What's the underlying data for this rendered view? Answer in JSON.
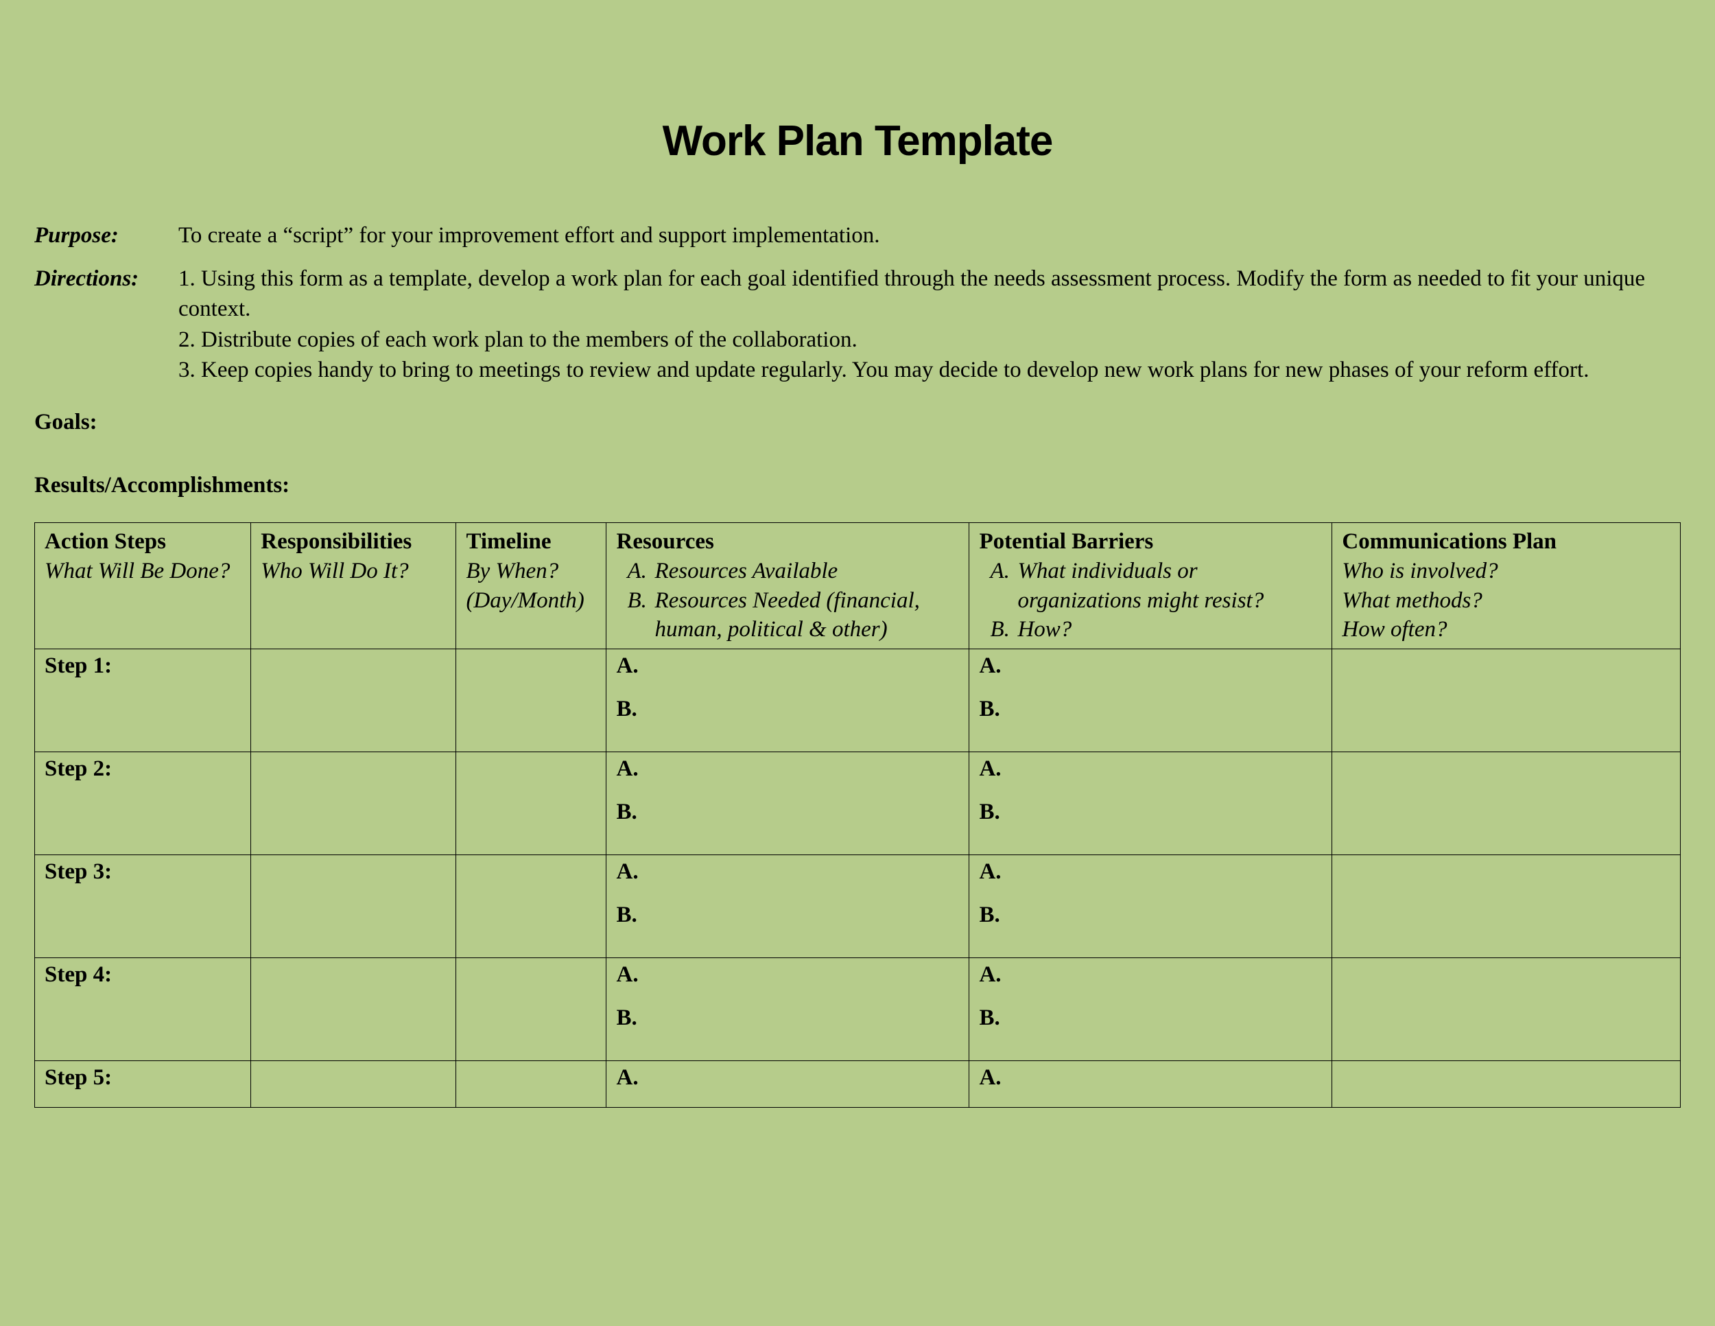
{
  "colors": {
    "background": "#b6cc8b",
    "text": "#000000",
    "border": "#000000"
  },
  "title": "Work Plan Template",
  "purpose": {
    "label": "Purpose:",
    "text": "To create a “script” for your improvement effort and support implementation."
  },
  "directions": {
    "label": "Directions:",
    "items": [
      "1.  Using this form as a template, develop a work plan for each goal identified through the needs assessment process.  Modify the form as needed to fit your unique context.",
      "2.  Distribute copies of each work plan to the members of the collaboration.",
      "3.  Keep copies handy to bring to meetings to review and update regularly.  You may decide to develop new work plans for new phases of your reform effort."
    ]
  },
  "goals_label": "Goals:",
  "results_label": "Results/Accomplishments:",
  "table": {
    "headers": {
      "action_steps": {
        "title": "Action Steps",
        "sub": "What Will Be Done?"
      },
      "responsibilities": {
        "title": "Responsibilities",
        "sub": "Who Will Do It?"
      },
      "timeline": {
        "title": "Timeline",
        "sub": "By When? (Day/Month)"
      },
      "resources": {
        "title": "Resources",
        "a": "Resources Available",
        "b": "Resources Needed (financial, human, political & other)"
      },
      "barriers": {
        "title": "Potential Barriers",
        "a": "What individuals or organizations might resist?",
        "b": "How?"
      },
      "communications": {
        "title": "Communications Plan",
        "sub1": "Who is involved?",
        "sub2": "What methods?",
        "sub3": "How often?"
      }
    },
    "steps": [
      {
        "label": "Step 1:",
        "a": "A.",
        "b": "B."
      },
      {
        "label": "Step 2:",
        "a": "A.",
        "b": "B."
      },
      {
        "label": "Step 3:",
        "a": "A.",
        "b": "B."
      },
      {
        "label": "Step 4:",
        "a": "A.",
        "b": "B."
      },
      {
        "label": "Step 5:",
        "a": "A.",
        "b": ""
      }
    ]
  }
}
